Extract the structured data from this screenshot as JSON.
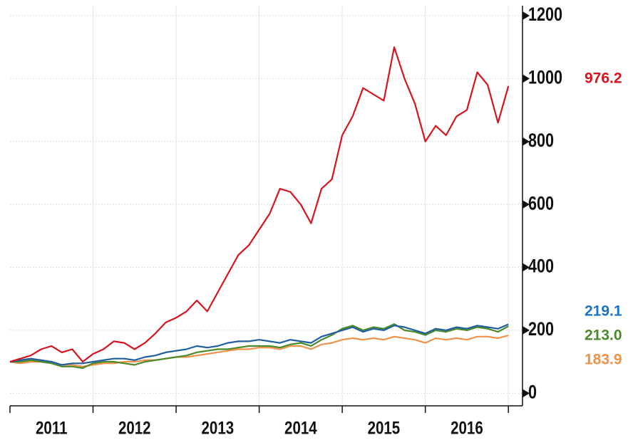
{
  "chart_data": {
    "type": "line",
    "categories": [
      "2011",
      "2012",
      "2013",
      "2014",
      "2015",
      "2016"
    ],
    "x": [
      2011.0,
      2011.125,
      2011.25,
      2011.375,
      2011.5,
      2011.625,
      2011.75,
      2011.875,
      2012.0,
      2012.125,
      2012.25,
      2012.375,
      2012.5,
      2012.625,
      2012.75,
      2012.875,
      2013.0,
      2013.125,
      2013.25,
      2013.375,
      2013.5,
      2013.625,
      2013.75,
      2013.875,
      2014.0,
      2014.125,
      2014.25,
      2014.375,
      2014.5,
      2014.625,
      2014.75,
      2014.875,
      2015.0,
      2015.125,
      2015.25,
      2015.375,
      2015.5,
      2015.625,
      2015.75,
      2015.875,
      2016.0,
      2016.125,
      2016.25,
      2016.375,
      2016.5,
      2016.625,
      2016.75,
      2016.875,
      2017.0
    ],
    "series": [
      {
        "color": "#d7141e",
        "values": [
          100,
          110,
          120,
          140,
          150,
          130,
          140,
          100,
          125,
          140,
          165,
          160,
          140,
          160,
          190,
          225,
          240,
          260,
          295,
          260,
          320,
          380,
          440,
          470,
          520,
          570,
          650,
          640,
          600,
          540,
          650,
          680,
          820,
          880,
          970,
          950,
          930,
          1100,
          1000,
          920,
          800,
          850,
          820,
          880,
          900,
          1020,
          980,
          860,
          976.2
        ],
        "value_labels": [
          "976.2"
        ]
      },
      {
        "color": "#1f5fa0",
        "label_color": "#1a73c4",
        "values": [
          100,
          105,
          110,
          105,
          100,
          90,
          95,
          95,
          100,
          105,
          110,
          110,
          105,
          115,
          120,
          130,
          135,
          140,
          150,
          145,
          150,
          160,
          165,
          165,
          170,
          165,
          160,
          170,
          165,
          160,
          180,
          190,
          200,
          210,
          195,
          205,
          200,
          215,
          210,
          200,
          190,
          205,
          200,
          210,
          205,
          215,
          210,
          205,
          219.1
        ],
        "value_labels": [
          "219.1"
        ]
      },
      {
        "color": "#4a8a2a",
        "values": [
          100,
          100,
          105,
          100,
          95,
          85,
          85,
          80,
          95,
          100,
          100,
          95,
          90,
          100,
          105,
          110,
          115,
          120,
          130,
          135,
          140,
          140,
          145,
          150,
          150,
          150,
          145,
          155,
          160,
          150,
          170,
          185,
          205,
          215,
          200,
          210,
          205,
          220,
          200,
          195,
          185,
          200,
          195,
          205,
          200,
          210,
          205,
          195,
          213.0
        ],
        "value_labels": [
          "213.0"
        ]
      },
      {
        "color": "#f0924a",
        "values": [
          100,
          95,
          100,
          100,
          100,
          90,
          90,
          85,
          90,
          95,
          95,
          100,
          100,
          105,
          105,
          110,
          115,
          115,
          120,
          125,
          130,
          135,
          140,
          140,
          145,
          145,
          140,
          150,
          150,
          140,
          155,
          160,
          170,
          175,
          170,
          175,
          170,
          180,
          175,
          170,
          160,
          175,
          170,
          175,
          170,
          180,
          180,
          175,
          183.9
        ],
        "value_labels": [
          "183.9"
        ]
      }
    ],
    "ylim": [
      -40,
      1200
    ],
    "yticks": [
      0,
      200,
      400,
      600,
      800,
      1000,
      1200
    ],
    "xlim": [
      2011,
      2017.17
    ],
    "xticks": [
      2011,
      2012,
      2013,
      2014,
      2015,
      2016,
      2017
    ],
    "grid": true
  }
}
